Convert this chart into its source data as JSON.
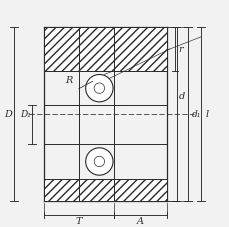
{
  "bg_color": "#f2f2f2",
  "line_color": "#2a2a2a",
  "fig_bg": "#f2f2f2",
  "labels": {
    "D": "D",
    "D1": "D₁",
    "d": "d",
    "d1": "d₁",
    "R": "R",
    "r": "r",
    "T": "T",
    "A": "A",
    "l": "l"
  },
  "figsize": [
    2.3,
    2.27
  ],
  "dpi": 100,
  "xlim": [
    0,
    230
  ],
  "ylim": [
    0,
    227
  ]
}
